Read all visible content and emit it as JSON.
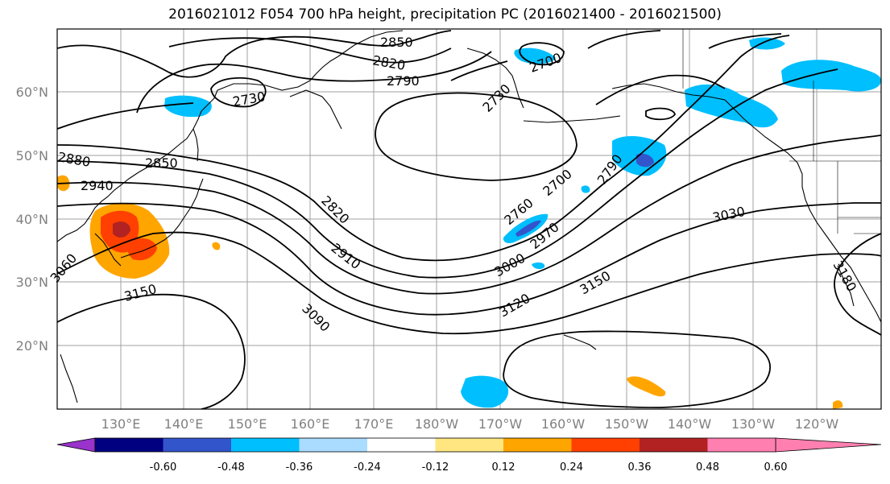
{
  "title": "2016021012 F054 700 hPa height, precipitation PC (2016021400 - 2016021500)",
  "lat_labels": [
    "60°N",
    "50°N",
    "40°N",
    "30°N",
    "20°N"
  ],
  "lon_labels": [
    "130°E",
    "140°E",
    "150°E",
    "160°E",
    "170°E",
    "180°W",
    "170°W",
    "160°W",
    "150°W",
    "140°W",
    "130°W",
    "120°W"
  ],
  "contour_labels": [
    "2850",
    "2820",
    "2790",
    "2730",
    "2700",
    "2730",
    "2850",
    "2880",
    "2940",
    "2820",
    "2910",
    "3060",
    "3150",
    "3090",
    "2760",
    "2700",
    "2790",
    "2970",
    "3000",
    "3120",
    "3150",
    "3030",
    "3180"
  ],
  "colorbar": {
    "colors": [
      "#9933cc",
      "#000080",
      "#3355cc",
      "#00bfff",
      "#aadcff",
      "#ffffff",
      "#ffe680",
      "#ffa500",
      "#ff4000",
      "#b22222",
      "#ff80b0"
    ],
    "ticks": [
      "-0.60",
      "-0.48",
      "-0.36",
      "-0.24",
      "-0.12",
      "0.12",
      "0.24",
      "0.36",
      "0.48",
      "0.60"
    ]
  }
}
